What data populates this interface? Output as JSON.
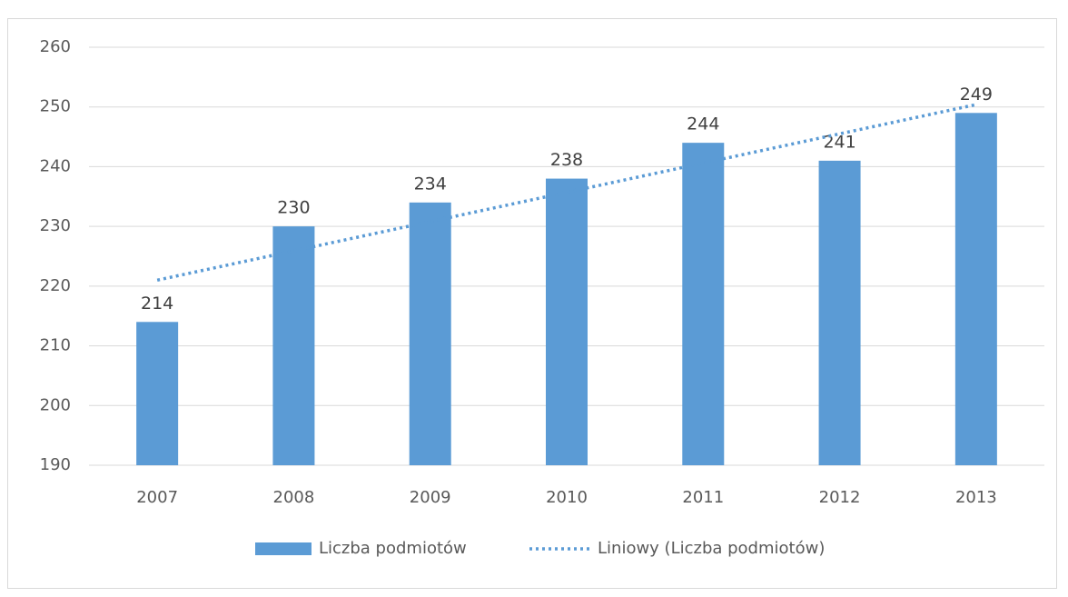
{
  "chart_data": {
    "type": "bar",
    "categories": [
      "2007",
      "2008",
      "2009",
      "2010",
      "2011",
      "2012",
      "2013"
    ],
    "series": [
      {
        "name": "Liczba podmiotów",
        "type": "bar",
        "color": "#5b9bd5",
        "values": [
          214,
          230,
          234,
          238,
          244,
          241,
          249
        ]
      },
      {
        "name": "Liniowy (Liczba podmiotów)",
        "type": "line",
        "dash": "dotted",
        "color": "#5b9bd5",
        "values": [
          221.0,
          225.9,
          230.8,
          235.7,
          240.6,
          245.5,
          250.4
        ]
      }
    ],
    "ylim": [
      190,
      260
    ],
    "yticks": [
      190,
      200,
      210,
      220,
      230,
      240,
      250,
      260
    ],
    "grid": true,
    "legend": "bottom"
  }
}
